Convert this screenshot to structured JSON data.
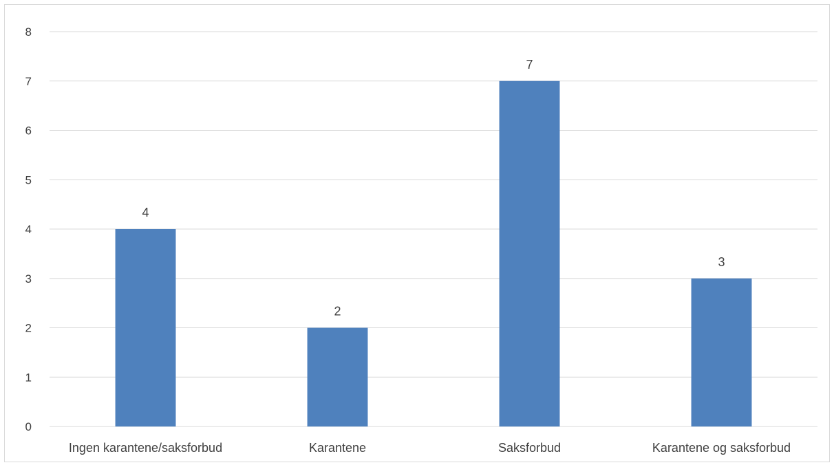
{
  "chart_data": {
    "type": "bar",
    "title": "",
    "xlabel": "",
    "ylabel": "",
    "categories": [
      "Ingen karantene/saksforbud",
      "Karantene",
      "Saksforbud",
      "Karantene og saksforbud"
    ],
    "values": [
      4,
      2,
      7,
      3
    ],
    "ylim": [
      0,
      8
    ],
    "yticks": [
      "0",
      "1",
      "2",
      "3",
      "4",
      "5",
      "6",
      "7",
      "8"
    ],
    "data_labels": [
      "4",
      "2",
      "7",
      "3"
    ],
    "grid": true,
    "legend": "none",
    "bar_color": "#4f81bd",
    "grid_color": "#d9d9d9"
  }
}
